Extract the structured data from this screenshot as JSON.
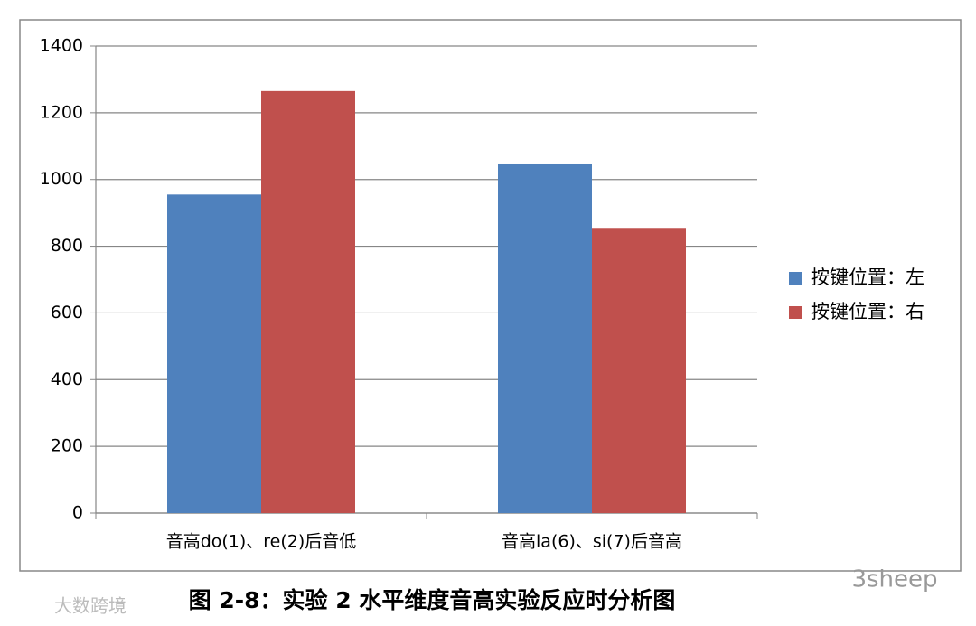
{
  "chart_data": {
    "type": "bar",
    "categories": [
      "音高do(1)、re(2)后音低",
      "音高la(6)、si(7)后音高"
    ],
    "series": [
      {
        "name": "按键位置：左",
        "color": "#4f81bd",
        "values": [
          955,
          1048
        ]
      },
      {
        "name": "按键位置：右",
        "color": "#c0504d",
        "values": [
          1265,
          855
        ]
      }
    ],
    "ylim": [
      0,
      1400
    ],
    "yticks": [
      0,
      200,
      400,
      600,
      800,
      1000,
      1200,
      1400
    ],
    "grid": true,
    "legend": "right"
  },
  "caption": "图 2-8：实验 2 水平维度音高实验反应时分析图",
  "watermarks": [
    "大数跨境",
    "3sheep"
  ]
}
